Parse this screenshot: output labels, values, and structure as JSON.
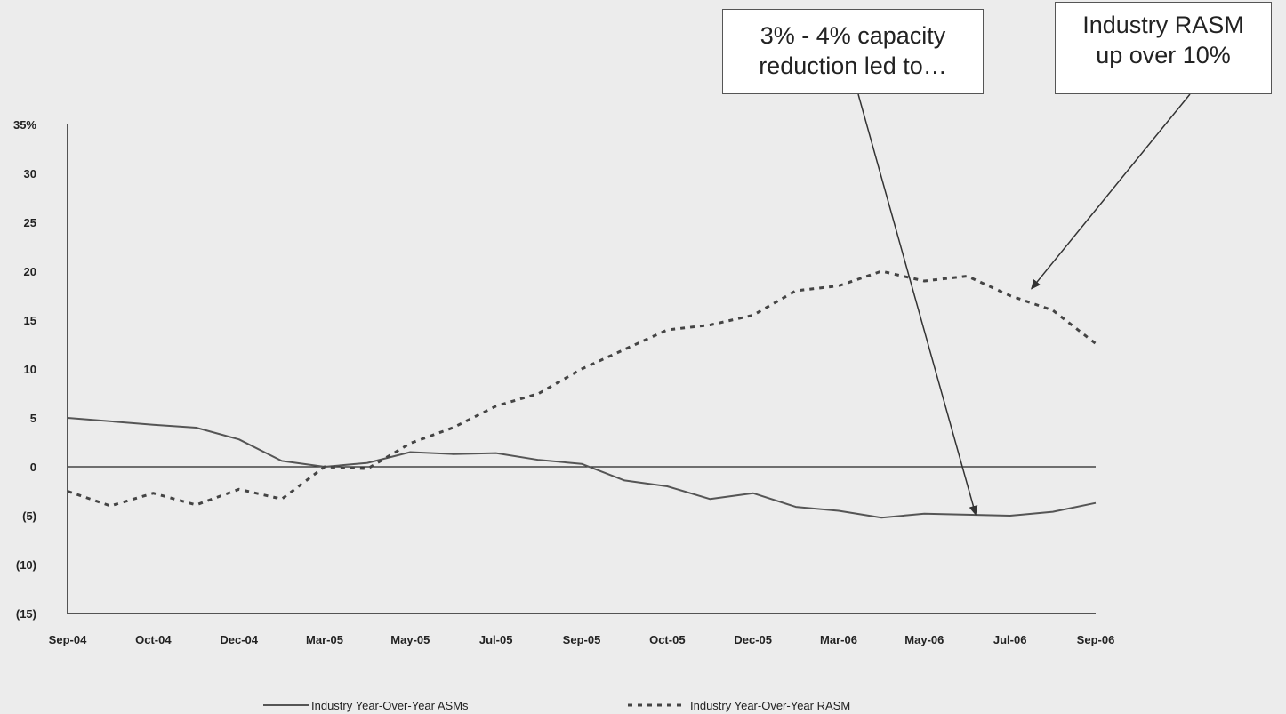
{
  "chart_data": {
    "type": "line",
    "title": "",
    "xlabel": "",
    "ylabel": "",
    "ylim": [
      -15,
      35
    ],
    "y_ticks": [
      35,
      30,
      25,
      20,
      15,
      10,
      5,
      0,
      -5,
      -10,
      -15
    ],
    "y_tick_labels": [
      "35%",
      "30",
      "25",
      "20",
      "15",
      "10",
      "5",
      "0",
      "(5)",
      "(10)",
      "(15)"
    ],
    "x_tick_labels": [
      "Sep-04",
      "Oct-04",
      "Dec-04",
      "Mar-05",
      "May-05",
      "Jul-05",
      "Sep-05",
      "Oct-05",
      "Dec-05",
      "Mar-06",
      "May-06",
      "Jul-06",
      "Sep-06"
    ],
    "x_range": [
      0,
      24
    ],
    "series": [
      {
        "name": "Industry Year-Over-Year ASMs",
        "style": "solid",
        "color": "#555555",
        "x": [
          0,
          2,
          3,
          4,
          5,
          6,
          7,
          8,
          9,
          10,
          11,
          12,
          13,
          14,
          15,
          16,
          17,
          18,
          19,
          20,
          21,
          22,
          23,
          24
        ],
        "y": [
          5.0,
          4.3,
          4.0,
          2.8,
          0.6,
          0.0,
          0.4,
          1.5,
          1.3,
          1.4,
          0.7,
          0.3,
          -1.4,
          -2.0,
          -3.3,
          -2.7,
          -4.1,
          -4.5,
          -5.2,
          -4.8,
          -4.9,
          -5.0,
          -4.6,
          -3.7
        ]
      },
      {
        "name": "Industry Year-Over-Year RASM",
        "style": "dashed",
        "color": "#444444",
        "x": [
          0,
          1,
          2,
          3,
          4,
          5,
          6,
          7,
          8,
          9,
          10,
          11,
          12,
          13,
          14,
          15,
          16,
          17,
          18,
          19,
          20,
          21,
          22,
          23,
          24
        ],
        "y": [
          -2.5,
          -4.0,
          -2.7,
          -3.9,
          -2.3,
          -3.3,
          0.0,
          -0.2,
          2.4,
          4.0,
          6.2,
          7.5,
          10.0,
          12.0,
          14.0,
          14.5,
          15.5,
          18.0,
          18.5,
          20.0,
          19.0,
          19.5,
          17.5,
          16.0,
          12.6
        ]
      }
    ],
    "legend": {
      "position": "bottom",
      "entries": [
        "Industry Year-Over-Year ASMs",
        "Industry Year-Over-Year RASM"
      ]
    },
    "annotations": [
      {
        "text_line1": "3% - 4% capacity",
        "text_line2": "reduction led to…",
        "points_to_x": 21.2,
        "points_to_y": -4.9
      },
      {
        "text_line1": "Industry RASM",
        "text_line2": "up over 10%",
        "points_to_x": 22.5,
        "points_to_y": 18.2
      }
    ],
    "grid": false
  }
}
